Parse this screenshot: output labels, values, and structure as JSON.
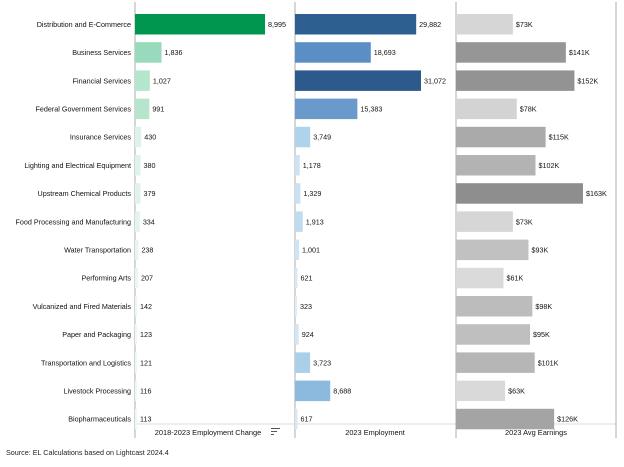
{
  "chart_data": {
    "type": "bar",
    "orientation": "horizontal",
    "categories": [
      "Distribution and E-Commerce",
      "Business Services",
      "Financial Services",
      "Federal Government Services",
      "Insurance Services",
      "Lighting and Electrical Equipment",
      "Upstream Chemical Products",
      "Food Processing and Manufacturing",
      "Water Transportation",
      "Performing Arts",
      "Vulcanized and Fired Materials",
      "Paper and Packaging",
      "Transportation and Logistics",
      "Livestock Processing",
      "Biopharmaceuticals"
    ],
    "panels": [
      {
        "title": "2018-2023 Employment Change",
        "values": [
          8995,
          1836,
          1027,
          991,
          430,
          380,
          379,
          334,
          238,
          207,
          142,
          123,
          121,
          116,
          113
        ],
        "labels": [
          "8,995",
          "1,836",
          "1,027",
          "991",
          "430",
          "380",
          "379",
          "334",
          "238",
          "207",
          "142",
          "123",
          "121",
          "116",
          "113"
        ],
        "colors": [
          "#009650",
          "#98dabc",
          "#b4e5cd",
          "#b6e5ce",
          "#ddf2e8",
          "#dff3ea",
          "#dff3ea",
          "#e2f4ec",
          "#e6f6ef",
          "#e8f7f0",
          "#ebf8f2",
          "#ecf8f3",
          "#ecf8f3",
          "#ecf8f3",
          "#ecf8f3"
        ],
        "sorted": true
      },
      {
        "title": "2023 Employment",
        "values": [
          29882,
          18693,
          31072,
          15383,
          3749,
          1178,
          1329,
          1913,
          1001,
          621,
          323,
          924,
          3723,
          8688,
          617
        ],
        "labels": [
          "29,882",
          "18,693",
          "31,072",
          "15,383",
          "3,749",
          "1,178",
          "1,329",
          "1,913",
          "1,001",
          "621",
          "323",
          "924",
          "3,723",
          "8,688",
          "617"
        ],
        "colors": [
          "#2e5f91",
          "#5b8ec4",
          "#2c5a8c",
          "#6a9acb",
          "#aed3ea",
          "#cde3f3",
          "#c9e1f2",
          "#bfdbef",
          "#cfe4f3",
          "#d8e9f6",
          "#dfedf7",
          "#d3e6f4",
          "#a9cfe9",
          "#8cbadf",
          "#d8e9f6"
        ]
      },
      {
        "title": "2023 Avg Earnings",
        "values": [
          73,
          141,
          152,
          78,
          115,
          102,
          163,
          73,
          93,
          61,
          98,
          95,
          101,
          63,
          126
        ],
        "labels": [
          "$73K",
          "$141K",
          "$152K",
          "$78K",
          "$115K",
          "$102K",
          "$163K",
          "$73K",
          "$93K",
          "$61K",
          "$98K",
          "$95K",
          "$101K",
          "$63K",
          "$126K"
        ],
        "unit": "thousand USD",
        "colors": [
          "#d6d6d6",
          "#969696",
          "#939393",
          "#d3d3d3",
          "#aaaaaa",
          "#b3b3b3",
          "#8e8e8e",
          "#d6d6d6",
          "#c1c1c1",
          "#dadada",
          "#bcbcbc",
          "#bfbfbf",
          "#b6b6b6",
          "#d9d9d9",
          "#a4a4a4"
        ]
      }
    ],
    "grid": false,
    "legend": "none"
  },
  "icons": {
    "sort": "sort-descending-icon"
  },
  "footer": {
    "source": "Source: EL Calculations based on Lightcast 2024.4"
  }
}
